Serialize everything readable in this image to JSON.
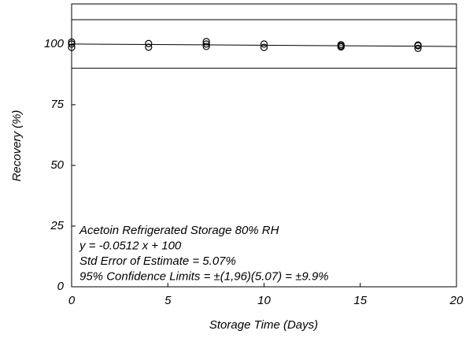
{
  "chart_data": {
    "type": "scatter",
    "x_label": "Storage Time (Days)",
    "y_label": "Recovery (%)",
    "xlim": [
      0,
      20
    ],
    "ylim": [
      0,
      116.5
    ],
    "xticks": [
      0,
      5,
      10,
      15,
      20
    ],
    "yticks": [
      0,
      25,
      50,
      75,
      100
    ],
    "color": "#000000",
    "series": [
      {
        "x": [
          0,
          0,
          0,
          4,
          4,
          7,
          7,
          7,
          10,
          10,
          14,
          14,
          14,
          18,
          18,
          18
        ],
        "values": [
          100.8,
          100,
          98.6,
          100.2,
          98.7,
          101,
          100,
          99,
          100,
          98.6,
          99.7,
          98.8,
          99.2,
          99.3,
          98.2,
          99.6
        ]
      }
    ],
    "lines": [
      {
        "x": [
          0,
          20
        ],
        "values": [
          100,
          98.976
        ]
      },
      {
        "x": [
          0,
          20
        ],
        "values": [
          110,
          110
        ]
      },
      {
        "x": [
          0,
          20
        ],
        "values": [
          90,
          90
        ]
      }
    ],
    "annotations": [
      "Acetoin Refrigerated Storage 80% RH",
      "y = -0.0512 x + 100",
      "Std Error of Estimate = 5.07%",
      "95% Confidence Limits = ±(1,96)(5.07) = ±9.9%"
    ]
  }
}
